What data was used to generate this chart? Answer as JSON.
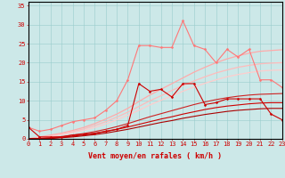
{
  "background_color": "#cce8e8",
  "grid_color": "#99cccc",
  "xlabel": "Vent moyen/en rafales ( km/h )",
  "xlabel_color": "#cc0000",
  "xlabel_fontsize": 6.0,
  "tick_color": "#cc0000",
  "tick_fontsize": 5.0,
  "ylim": [
    0,
    36
  ],
  "xlim": [
    0,
    23
  ],
  "yticks": [
    0,
    5,
    10,
    15,
    20,
    25,
    30,
    35
  ],
  "xticks": [
    0,
    1,
    2,
    3,
    4,
    5,
    6,
    7,
    8,
    9,
    10,
    11,
    12,
    13,
    14,
    15,
    16,
    17,
    18,
    19,
    20,
    21,
    22,
    23
  ],
  "x": [
    0,
    1,
    2,
    3,
    4,
    5,
    6,
    7,
    8,
    9,
    10,
    11,
    12,
    13,
    14,
    15,
    16,
    17,
    18,
    19,
    20,
    21,
    22,
    23
  ],
  "lines": [
    {
      "y": [
        0.0,
        0.5,
        1.0,
        1.5,
        2.2,
        3.0,
        4.0,
        5.2,
        6.5,
        8.0,
        9.8,
        11.5,
        13.0,
        14.5,
        16.0,
        17.5,
        18.8,
        20.0,
        21.0,
        21.8,
        22.5,
        23.0,
        23.2,
        23.4
      ],
      "color": "#ffaaaa",
      "lw": 0.9,
      "marker": null,
      "ms": 0
    },
    {
      "y": [
        0.0,
        0.3,
        0.8,
        1.3,
        1.9,
        2.6,
        3.5,
        4.5,
        5.7,
        7.0,
        8.5,
        10.0,
        11.3,
        12.7,
        14.0,
        15.2,
        16.3,
        17.3,
        18.1,
        18.8,
        19.3,
        19.7,
        19.9,
        20.0
      ],
      "color": "#ffbbbb",
      "lw": 0.9,
      "marker": null,
      "ms": 0
    },
    {
      "y": [
        0.0,
        0.2,
        0.6,
        1.1,
        1.6,
        2.2,
        3.0,
        3.9,
        5.0,
        6.2,
        7.5,
        8.9,
        10.1,
        11.3,
        12.5,
        13.6,
        14.6,
        15.5,
        16.3,
        16.9,
        17.4,
        17.8,
        18.0,
        18.1
      ],
      "color": "#ffcccc",
      "lw": 0.9,
      "marker": null,
      "ms": 0
    },
    {
      "y": [
        0.0,
        0.1,
        0.3,
        0.6,
        1.0,
        1.4,
        1.9,
        2.5,
        3.2,
        4.0,
        4.9,
        5.8,
        6.6,
        7.4,
        8.2,
        9.0,
        9.7,
        10.3,
        10.8,
        11.2,
        11.5,
        11.7,
        11.8,
        11.9
      ],
      "color": "#cc2222",
      "lw": 0.8,
      "marker": null,
      "ms": 0
    },
    {
      "y": [
        0.0,
        0.1,
        0.2,
        0.4,
        0.7,
        1.0,
        1.4,
        1.9,
        2.5,
        3.1,
        3.8,
        4.5,
        5.2,
        5.8,
        6.5,
        7.1,
        7.7,
        8.2,
        8.6,
        8.9,
        9.2,
        9.4,
        9.5,
        9.5
      ],
      "color": "#cc0000",
      "lw": 0.8,
      "marker": null,
      "ms": 0
    },
    {
      "y": [
        0.0,
        0.0,
        0.1,
        0.3,
        0.5,
        0.8,
        1.1,
        1.5,
        2.0,
        2.5,
        3.1,
        3.7,
        4.3,
        4.8,
        5.4,
        5.9,
        6.4,
        6.8,
        7.2,
        7.5,
        7.7,
        7.9,
        8.0,
        8.0
      ],
      "color": "#aa0000",
      "lw": 0.8,
      "marker": null,
      "ms": 0
    },
    {
      "y": [
        3.0,
        2.0,
        2.5,
        3.5,
        4.5,
        5.0,
        5.5,
        7.5,
        10.0,
        15.5,
        24.5,
        24.5,
        24.0,
        24.0,
        31.0,
        24.5,
        23.5,
        20.0,
        23.5,
        21.5,
        23.5,
        15.5,
        15.5,
        13.5
      ],
      "color": "#ff7777",
      "lw": 0.8,
      "marker": "D",
      "ms": 1.5
    },
    {
      "y": [
        3.0,
        0.5,
        0.5,
        0.5,
        1.0,
        1.2,
        1.5,
        2.0,
        2.5,
        3.5,
        14.5,
        12.5,
        13.0,
        11.0,
        14.5,
        14.5,
        9.0,
        9.5,
        10.5,
        10.5,
        10.5,
        10.5,
        6.5,
        5.0
      ],
      "color": "#cc0000",
      "lw": 0.8,
      "marker": "D",
      "ms": 1.5
    }
  ],
  "wind_arrows_x": [
    0,
    1,
    2,
    3,
    4,
    5,
    6,
    7,
    8,
    9,
    10,
    11,
    12,
    13,
    14,
    15,
    16,
    17,
    18,
    19,
    20,
    21,
    22,
    23
  ]
}
